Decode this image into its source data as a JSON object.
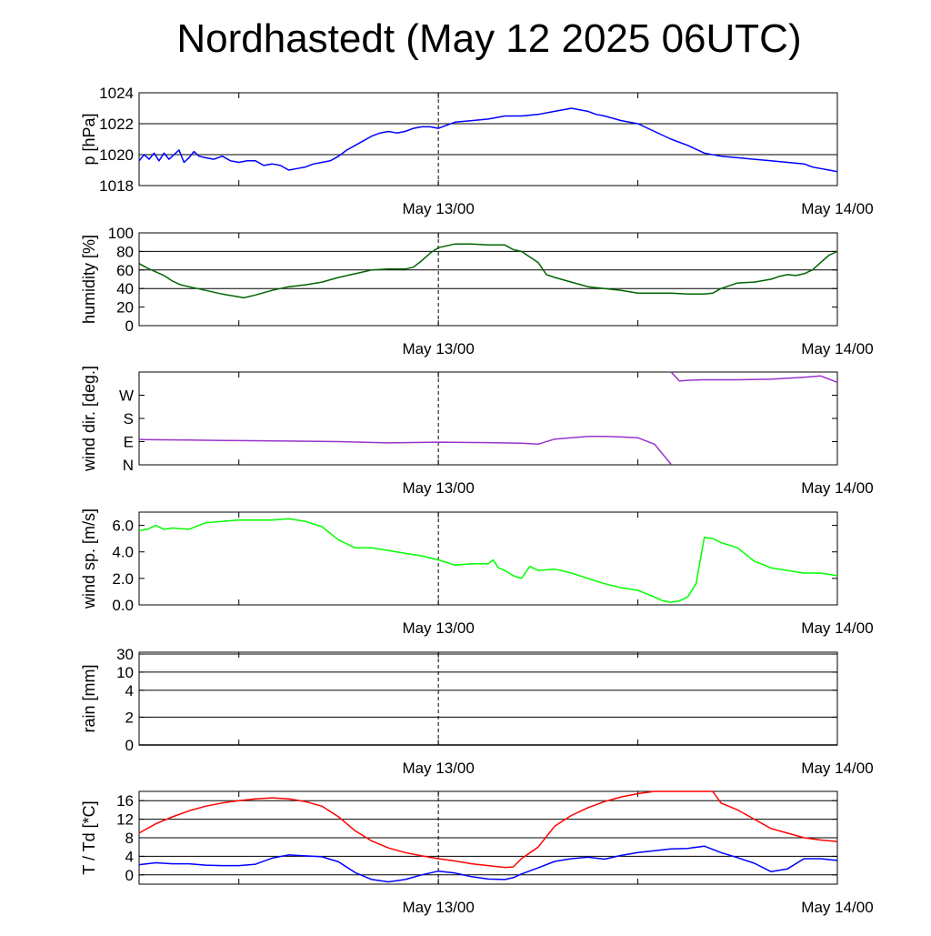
{
  "title": "Nordhastedt (May 12 2025 06UTC)",
  "time_axis": {
    "tick_labels": [
      "May 13/00",
      "May 14/00"
    ],
    "x_unit": "hours since May 12 2025 06UTC",
    "range": [
      0,
      42
    ],
    "label_ticks_at": [
      18,
      42
    ],
    "minor_ticks_at": [
      6,
      30
    ],
    "marker_line_at": 18
  },
  "chart_data": [
    {
      "type": "line",
      "key": "pressure",
      "ylabel": "p [hPa]",
      "ylim": [
        1018,
        1024
      ],
      "yticks": [
        1018,
        1020,
        1022,
        1024
      ],
      "ytick_labels": [
        "1018",
        "1020",
        "1022",
        "1024"
      ],
      "grid": [
        1020,
        1022
      ],
      "series": [
        {
          "color": "#0000ff",
          "x": [
            0,
            0.3,
            0.6,
            0.9,
            1.2,
            1.5,
            1.8,
            2.1,
            2.4,
            2.7,
            3,
            3.3,
            3.6,
            4,
            4.5,
            5,
            5.5,
            6,
            6.5,
            7,
            7.5,
            8,
            8.5,
            9,
            9.5,
            10,
            10.5,
            11,
            11.5,
            12,
            12.5,
            13,
            13.5,
            14,
            14.5,
            15,
            15.5,
            16,
            16.5,
            17,
            17.5,
            18,
            18.5,
            19,
            20,
            21,
            22,
            23,
            24,
            25,
            25.5,
            26,
            26.5,
            27,
            27.5,
            28,
            29,
            30,
            31,
            32,
            33,
            34,
            35,
            36,
            37,
            38,
            39,
            40,
            40.5,
            41,
            41.5,
            42
          ],
          "y": [
            1019.6,
            1020.0,
            1019.7,
            1020.1,
            1019.6,
            1020.1,
            1019.7,
            1020.0,
            1020.3,
            1019.5,
            1019.8,
            1020.2,
            1019.9,
            1019.8,
            1019.7,
            1019.9,
            1019.6,
            1019.5,
            1019.6,
            1019.6,
            1019.3,
            1019.4,
            1019.3,
            1019.0,
            1019.1,
            1019.2,
            1019.4,
            1019.5,
            1019.6,
            1019.9,
            1020.3,
            1020.6,
            1020.9,
            1021.2,
            1021.4,
            1021.5,
            1021.4,
            1021.5,
            1021.7,
            1021.8,
            1021.8,
            1021.7,
            1021.9,
            1022.1,
            1022.2,
            1022.3,
            1022.5,
            1022.5,
            1022.6,
            1022.8,
            1022.9,
            1023.0,
            1022.9,
            1022.8,
            1022.6,
            1022.5,
            1022.2,
            1022.0,
            1021.5,
            1021.0,
            1020.6,
            1020.1,
            1019.9,
            1019.8,
            1019.7,
            1019.6,
            1019.5,
            1019.4,
            1019.2,
            1019.1,
            1019.0,
            1018.9
          ]
        }
      ]
    },
    {
      "type": "line",
      "key": "humidity",
      "ylabel": "humidity [%]",
      "ylim": [
        0,
        100
      ],
      "yticks": [
        0,
        20,
        40,
        60,
        80,
        100
      ],
      "ytick_labels": [
        "0",
        "20",
        "40",
        "60",
        "80",
        "100"
      ],
      "grid": [
        40,
        60,
        80
      ],
      "series": [
        {
          "color": "#006400",
          "x": [
            0,
            0.5,
            1,
            1.5,
            2,
            2.5,
            3,
            3.5,
            4,
            5,
            6,
            6.3,
            7,
            8,
            9,
            10,
            11,
            12,
            13,
            14,
            15,
            16,
            16.5,
            17,
            17.5,
            18,
            19,
            20,
            21,
            21.5,
            22,
            22.5,
            23,
            24,
            24.5,
            25,
            26,
            27,
            28,
            29,
            30,
            31,
            32,
            33,
            34,
            34.5,
            35,
            36,
            37,
            38,
            38.5,
            39,
            39.5,
            40,
            40.5,
            41,
            41.5,
            42
          ],
          "y": [
            67,
            62,
            58,
            54,
            48,
            44,
            42,
            40,
            38,
            34,
            31,
            30,
            33,
            38,
            42,
            44,
            47,
            52,
            56,
            60,
            61,
            61,
            63,
            70,
            78,
            84,
            88,
            88,
            87,
            87,
            87,
            82,
            80,
            68,
            55,
            52,
            47,
            42,
            40,
            38,
            35,
            35,
            35,
            34,
            34,
            35,
            40,
            46,
            47,
            50,
            53,
            55,
            54,
            56,
            60,
            68,
            76,
            80
          ]
        }
      ]
    },
    {
      "type": "line",
      "key": "wind_direction",
      "ylabel": "wind dir. [deg.]",
      "ylim": [
        0,
        360
      ],
      "yticks": [
        0,
        90,
        180,
        270
      ],
      "ytick_labels": [
        "N",
        "E",
        "S",
        "W"
      ],
      "grid": [],
      "series": [
        {
          "color": "#9932cc",
          "segments": [
            {
              "x": [
                0,
                3,
                6,
                9,
                12,
                15,
                18,
                21,
                23,
                24,
                25,
                27,
                28,
                29,
                30,
                31,
                32
              ],
              "y": [
                98,
                96,
                94,
                92,
                90,
                85,
                88,
                86,
                84,
                80,
                100,
                110,
                110,
                108,
                105,
                80,
                2
              ]
            },
            {
              "x": [
                32,
                32.5,
                33,
                34,
                36,
                38,
                40,
                41,
                42
              ],
              "y": [
                360,
                325,
                328,
                330,
                330,
                332,
                340,
                345,
                320
              ]
            }
          ]
        }
      ]
    },
    {
      "type": "line",
      "key": "wind_speed",
      "ylabel": "wind sp. [m/s]",
      "ylim": [
        0,
        7
      ],
      "yticks": [
        0,
        2,
        4,
        6
      ],
      "ytick_labels": [
        "0.0",
        "2.0",
        "4.0",
        "6.0"
      ],
      "grid": [],
      "series": [
        {
          "color": "#00ff00",
          "x": [
            0,
            0.5,
            1,
            1.5,
            2,
            3,
            4,
            5,
            6,
            7,
            8,
            9,
            10,
            11,
            12,
            13,
            14,
            15,
            16,
            17,
            18,
            18.5,
            19,
            20,
            21,
            21.3,
            21.6,
            22,
            22.5,
            23,
            23.5,
            24,
            25,
            26,
            27,
            28,
            29,
            30,
            31,
            31.5,
            32,
            32.5,
            33,
            33.5,
            34,
            34.5,
            35,
            36,
            37,
            38,
            39,
            40,
            41,
            42
          ],
          "y": [
            5.6,
            5.7,
            6.0,
            5.7,
            5.8,
            5.7,
            6.2,
            6.3,
            6.4,
            6.4,
            6.4,
            6.5,
            6.3,
            5.9,
            4.9,
            4.3,
            4.3,
            4.1,
            3.9,
            3.7,
            3.4,
            3.2,
            3.0,
            3.1,
            3.1,
            3.4,
            2.8,
            2.6,
            2.2,
            2.0,
            2.9,
            2.6,
            2.7,
            2.4,
            2.0,
            1.6,
            1.3,
            1.1,
            0.6,
            0.3,
            0.2,
            0.3,
            0.6,
            1.6,
            5.1,
            5.0,
            4.7,
            4.3,
            3.3,
            2.8,
            2.6,
            2.4,
            2.4,
            2.2
          ]
        }
      ]
    },
    {
      "type": "line",
      "key": "rain",
      "ylabel": "rain [mm]",
      "ylim": [
        0,
        30
      ],
      "scale": "nonlinear",
      "yticks": [
        0,
        2,
        4,
        10,
        30
      ],
      "ytick_labels": [
        "0",
        "2",
        "4",
        "10",
        "30"
      ],
      "grid": [
        2,
        4,
        10,
        30
      ],
      "series": [
        {
          "color": "#000000",
          "x": [
            0,
            42
          ],
          "y": [
            0,
            0
          ]
        }
      ]
    },
    {
      "type": "line",
      "key": "temperature",
      "ylabel": "T / Td [*C]",
      "ylim": [
        -2,
        18
      ],
      "yticks": [
        0,
        4,
        8,
        12,
        16
      ],
      "ytick_labels": [
        "0",
        "4",
        "8",
        "12",
        "16"
      ],
      "grid": [
        0,
        4,
        8,
        12,
        16
      ],
      "series": [
        {
          "color": "#ff0000",
          "x": [
            0,
            1,
            2,
            3,
            4,
            5,
            6,
            7,
            8,
            9,
            10,
            11,
            12,
            13,
            14,
            15,
            16,
            17,
            18,
            19,
            20,
            21,
            22,
            22.5,
            23,
            24,
            25,
            26,
            27,
            28,
            29,
            30,
            31,
            32,
            33,
            34,
            34.5,
            35,
            36,
            37,
            38,
            39,
            40,
            41,
            42
          ],
          "y": [
            9.0,
            11.0,
            12.5,
            13.8,
            14.8,
            15.5,
            16.0,
            16.4,
            16.6,
            16.4,
            15.8,
            14.8,
            12.5,
            9.5,
            7.3,
            5.8,
            4.8,
            4.1,
            3.5,
            3.0,
            2.4,
            2.0,
            1.6,
            1.7,
            3.5,
            6.0,
            10.5,
            12.8,
            14.5,
            15.8,
            16.8,
            17.5,
            18.0,
            18.4,
            18.6,
            18.6,
            18.1,
            15.5,
            14.0,
            12.0,
            10.0,
            9.0,
            8.0,
            7.5,
            7.2
          ]
        },
        {
          "color": "#0000ff",
          "x": [
            0,
            1,
            2,
            3,
            4,
            5,
            6,
            7,
            8,
            9,
            10,
            11,
            12,
            13,
            14,
            15,
            16,
            17,
            18,
            19,
            20,
            21,
            22,
            22.5,
            23,
            24,
            25,
            26,
            27,
            28,
            29,
            30,
            31,
            32,
            33,
            34,
            35,
            36,
            37,
            38,
            39,
            40,
            41,
            42
          ],
          "y": [
            2.2,
            2.6,
            2.4,
            2.4,
            2.1,
            2.0,
            2.0,
            2.3,
            3.6,
            4.3,
            4.1,
            3.9,
            2.8,
            0.5,
            -1.0,
            -1.5,
            -1.0,
            0.0,
            0.8,
            0.4,
            -0.4,
            -0.9,
            -1.0,
            -0.6,
            0.2,
            1.5,
            2.9,
            3.5,
            3.8,
            3.4,
            4.2,
            4.8,
            5.2,
            5.6,
            5.7,
            6.2,
            4.8,
            3.7,
            2.5,
            0.7,
            1.3,
            3.5,
            3.5,
            3.1
          ]
        }
      ]
    }
  ]
}
